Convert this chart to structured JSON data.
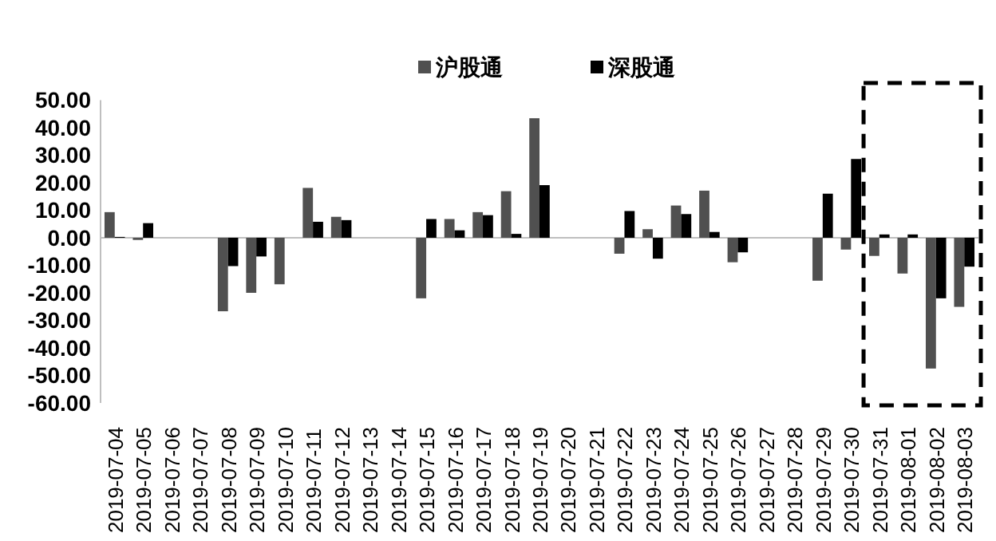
{
  "chart_data": {
    "type": "bar",
    "categories": [
      "2019-07-04",
      "2019-07-05",
      "2019-07-06",
      "2019-07-07",
      "2019-07-08",
      "2019-07-09",
      "2019-07-10",
      "2019-07-11",
      "2019-07-12",
      "2019-07-13",
      "2019-07-14",
      "2019-07-15",
      "2019-07-16",
      "2019-07-17",
      "2019-07-18",
      "2019-07-19",
      "2019-07-20",
      "2019-07-21",
      "2019-07-22",
      "2019-07-23",
      "2019-07-24",
      "2019-07-25",
      "2019-07-26",
      "2019-07-27",
      "2019-07-28",
      "2019-07-29",
      "2019-07-30",
      "2019-07-31",
      "2019-08-01",
      "2019-08-02",
      "2019-08-03"
    ],
    "series": [
      {
        "name": "沪股通",
        "color": "#505050",
        "values": [
          9.3,
          -0.8,
          null,
          null,
          -26.7,
          -20,
          -16.9,
          18.1,
          7.6,
          null,
          null,
          -22,
          6.8,
          9.3,
          16.9,
          43.4,
          null,
          null,
          -5.8,
          3.1,
          11.7,
          17.1,
          -8.9,
          null,
          null,
          -15.6,
          -4.3,
          -6.6,
          -13,
          -47.5,
          -25.1
        ]
      },
      {
        "name": "深股通",
        "color": "#000000",
        "values": [
          0.3,
          5.3,
          null,
          null,
          -10.3,
          -6.8,
          null,
          5.8,
          6.4,
          null,
          null,
          6.8,
          2.7,
          8.2,
          1.4,
          19.1,
          null,
          null,
          9.7,
          -7.6,
          8.6,
          2.1,
          -5.3,
          null,
          null,
          16,
          28.6,
          1.2,
          1.2,
          -22,
          -10.5
        ]
      }
    ],
    "ylim": [
      -60,
      50
    ],
    "yticks": [
      {
        "value": 50,
        "label": "50.00"
      },
      {
        "value": 40,
        "label": "40.00"
      },
      {
        "value": 30,
        "label": "30.00"
      },
      {
        "value": 20,
        "label": "20.00"
      },
      {
        "value": 10,
        "label": "10.00"
      },
      {
        "value": 0,
        "label": "0.00"
      },
      {
        "value": -10,
        "label": "-10.00"
      },
      {
        "value": -20,
        "label": "-20.00"
      },
      {
        "value": -30,
        "label": "-30.00"
      },
      {
        "value": -40,
        "label": "-40.00"
      },
      {
        "value": -50,
        "label": "-50.00"
      },
      {
        "value": -60,
        "label": "-60.00"
      }
    ],
    "legend": "top"
  }
}
